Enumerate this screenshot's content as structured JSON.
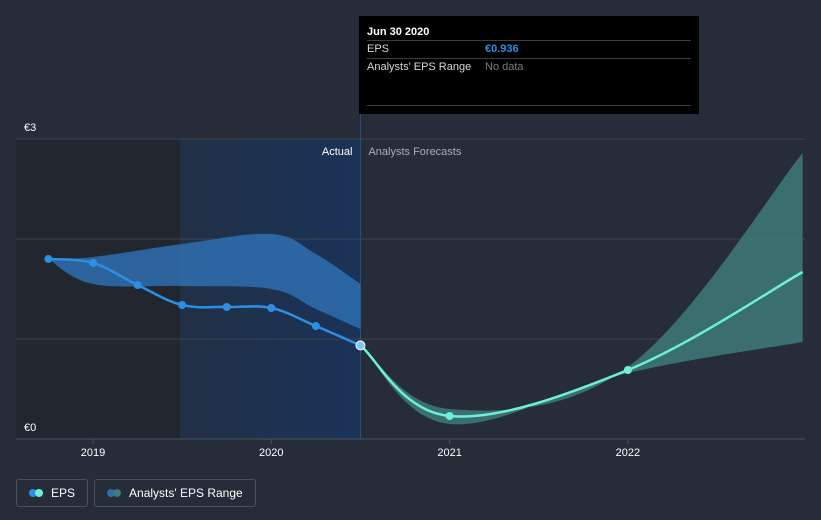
{
  "chart_data": {
    "type": "line",
    "ylabels": {
      "top": "€3",
      "bottom": "€0"
    },
    "ylim": [
      0,
      3
    ],
    "x_ticks": [
      "2019",
      "2020",
      "2021",
      "2022"
    ],
    "x_tick_values": [
      2019.0,
      2020.0,
      2021.0,
      2022.0
    ],
    "xlim": [
      2018.5,
      2022.98
    ],
    "divider_x": 2020.5,
    "region_labels": {
      "actual": "Actual",
      "forecast": "Analysts Forecasts"
    },
    "series": [
      {
        "name": "EPS",
        "points": [
          {
            "x": 2018.75,
            "y": 1.8
          },
          {
            "x": 2019.0,
            "y": 1.76
          },
          {
            "x": 2019.25,
            "y": 1.54
          },
          {
            "x": 2019.5,
            "y": 1.34
          },
          {
            "x": 2019.75,
            "y": 1.32
          },
          {
            "x": 2020.0,
            "y": 1.31
          },
          {
            "x": 2020.25,
            "y": 1.13
          },
          {
            "x": 2020.5,
            "y": 0.936
          }
        ]
      },
      {
        "name": "EPS",
        "points": [
          {
            "x": 2020.5,
            "y": 0.936
          },
          {
            "x": 2021.0,
            "y": 0.23
          },
          {
            "x": 2022.0,
            "y": 0.69
          },
          {
            "x": 2022.98,
            "y": 1.67
          }
        ]
      }
    ],
    "past_range": {
      "x": [
        2018.75,
        2019.0,
        2019.5,
        2020.0,
        2020.25,
        2020.5
      ],
      "upper": [
        1.8,
        1.82,
        1.95,
        2.05,
        1.85,
        1.55
      ],
      "lower": [
        1.8,
        1.55,
        1.53,
        1.5,
        1.3,
        1.1
      ]
    },
    "forecast_range": {
      "x": [
        2020.5,
        2021.0,
        2022.0,
        2022.98
      ],
      "upper": [
        0.936,
        0.3,
        0.72,
        2.86
      ],
      "lower": [
        0.936,
        0.15,
        0.66,
        0.97
      ]
    },
    "colors": {
      "eps_actual": "#2d8fe4",
      "eps_forecast": "#6ef0d8",
      "range_past": "#2e6fb0",
      "range_forecast": "#3f7b79",
      "actual_region": "#1a3358"
    }
  },
  "tooltip": {
    "date": "Jun 30 2020",
    "eps_label": "EPS",
    "eps_value": "€0.936",
    "range_label": "Analysts' EPS Range",
    "range_value": "No data"
  },
  "legend": {
    "items": [
      {
        "label": "EPS",
        "icon": "eps-dots-icon"
      },
      {
        "label": "Analysts' EPS Range",
        "icon": "range-dots-icon"
      }
    ]
  }
}
